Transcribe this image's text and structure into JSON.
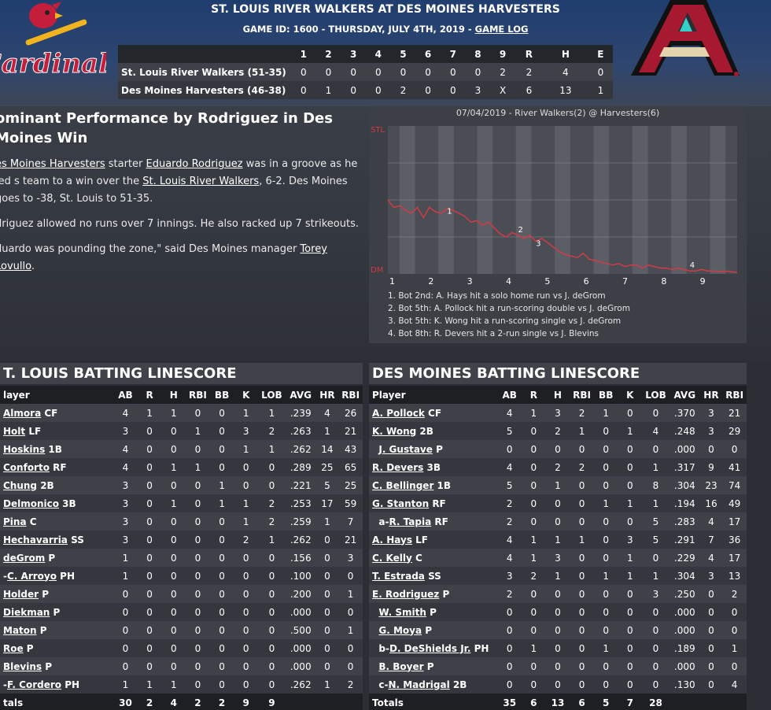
{
  "header": {
    "title": "ST. LOUIS RIVER WALKERS AT DES MOINES HARVESTERS",
    "subtitle": "GAME ID: 1600 - THURSDAY, JULY 4TH, 2019 - ",
    "game_log_link": "GAME LOG",
    "away_logo": "cardinals-logo",
    "home_logo": "arizona-a-logo"
  },
  "linescore": {
    "headers": [
      "",
      "1",
      "2",
      "3",
      "4",
      "5",
      "6",
      "7",
      "8",
      "9",
      "R",
      "H",
      "E"
    ],
    "rows": [
      [
        "St. Louis River Walkers (51-35)",
        "0",
        "0",
        "0",
        "0",
        "0",
        "0",
        "0",
        "0",
        "2",
        "2",
        "4",
        "0"
      ],
      [
        "Des Moines Harvesters (46-38)",
        "0",
        "1",
        "0",
        "0",
        "2",
        "0",
        "0",
        "3",
        "X",
        "6",
        "13",
        "1"
      ]
    ]
  },
  "story": {
    "headline": "ominant Performance by Rodriguez in Des Moines Win",
    "p1_a": "es Moines Harvesters",
    "p1_b": " starter ",
    "p1_c": "Eduardo Rodriguez",
    "p1_d": " was in a groove as he led s team to a win over the ",
    "p1_e": "St. Louis River Walkers",
    "p1_f": ", 6-2. Des Moines goes to -38, St. Louis to 51-35.",
    "p2": "driguez allowed no runs over 7 innings. He also racked up 7 strikeouts.",
    "p3_a": "duardo was pounding the zone,\" said Des Moines manager ",
    "p3_b": "Torey Lovullo",
    "p3_c": "."
  },
  "win_prob": {
    "title": "07/04/2019 - River Walkers(2) @ Harvesters(6)",
    "top_label": "STL",
    "bottom_label": "DM",
    "innings": [
      "1",
      "2",
      "3",
      "4",
      "5",
      "6",
      "7",
      "8",
      "9"
    ],
    "line_color": "#d23a48",
    "points": [
      0.5,
      0.45,
      0.46,
      0.43,
      0.41,
      0.45,
      0.38,
      0.45,
      0.42,
      0.41,
      0.44,
      0.43,
      0.41,
      0.39,
      0.35,
      0.36,
      0.33,
      0.35,
      0.31,
      0.27,
      0.25,
      0.28,
      0.26,
      0.24,
      0.26,
      0.22,
      0.24,
      0.21,
      0.18,
      0.15,
      0.13,
      0.12,
      0.11,
      0.14,
      0.1,
      0.09,
      0.08,
      0.07,
      0.06,
      0.07,
      0.05,
      0.06,
      0.06,
      0.04,
      0.06,
      0.05,
      0.04,
      0.04,
      0.03,
      0.04,
      0.03,
      0.02,
      0.02,
      0.03,
      0.02,
      0.02,
      0.015,
      0.02,
      0.015,
      0.01
    ],
    "event_markers": [
      "1",
      "2",
      "3",
      "4"
    ],
    "notes": [
      "1. Bot 2nd: A. Hays hit a solo home run vs J. deGrom",
      "2. Bot 5th: A. Pollock hit a run-scoring double vs J. deGrom",
      "3. Bot 5th: K. Wong hit a run-scoring single vs J. deGrom",
      "4. Bot 8th: R. Devers hit a 2-run single vs J. Blevins"
    ]
  },
  "stl_batting": {
    "title": "T. LOUIS BATTING LINESCORE",
    "headers": [
      "layer",
      "AB",
      "R",
      "H",
      "RBI",
      "BB",
      "K",
      "LOB",
      "AVG",
      "HR",
      "RBI"
    ],
    "rows": [
      {
        "pre": "",
        "name": "Almora",
        "pos": " CF",
        "s": [
          "4",
          "1",
          "1",
          "0",
          "0",
          "1",
          "1",
          ".239",
          "4",
          "26"
        ]
      },
      {
        "pre": "",
        "name": "Holt",
        "pos": " LF",
        "s": [
          "3",
          "0",
          "0",
          "1",
          "0",
          "3",
          "2",
          ".263",
          "1",
          "21"
        ]
      },
      {
        "pre": "",
        "name": "Hoskins",
        "pos": " 1B",
        "s": [
          "4",
          "0",
          "0",
          "0",
          "0",
          "1",
          "1",
          ".262",
          "14",
          "43"
        ]
      },
      {
        "pre": "",
        "name": "Conforto",
        "pos": " RF",
        "s": [
          "4",
          "0",
          "1",
          "1",
          "0",
          "0",
          "0",
          ".289",
          "25",
          "65"
        ]
      },
      {
        "pre": "",
        "name": "Chung",
        "pos": " 2B",
        "s": [
          "3",
          "0",
          "0",
          "0",
          "1",
          "0",
          "0",
          ".221",
          "5",
          "25"
        ]
      },
      {
        "pre": "",
        "name": "Delmonico",
        "pos": " 3B",
        "s": [
          "3",
          "0",
          "1",
          "0",
          "1",
          "1",
          "2",
          ".253",
          "17",
          "59"
        ]
      },
      {
        "pre": "",
        "name": "Pina",
        "pos": " C",
        "s": [
          "3",
          "0",
          "0",
          "0",
          "0",
          "1",
          "2",
          ".259",
          "1",
          "7"
        ]
      },
      {
        "pre": "",
        "name": "Hechavarria",
        "pos": " SS",
        "s": [
          "3",
          "0",
          "0",
          "0",
          "0",
          "2",
          "1",
          ".262",
          "0",
          "21"
        ]
      },
      {
        "pre": "",
        "name": "deGrom",
        "pos": " P",
        "s": [
          "1",
          "0",
          "0",
          "0",
          "0",
          "0",
          "0",
          ".156",
          "0",
          "3"
        ]
      },
      {
        "pre": "-",
        "name": "C. Arroyo",
        "pos": " PH",
        "s": [
          "1",
          "0",
          "0",
          "0",
          "0",
          "0",
          "0",
          ".100",
          "0",
          "0"
        ]
      },
      {
        "pre": "",
        "name": "Holder",
        "pos": " P",
        "s": [
          "0",
          "0",
          "0",
          "0",
          "0",
          "0",
          "0",
          ".200",
          "0",
          "1"
        ]
      },
      {
        "pre": "",
        "name": "Diekman",
        "pos": " P",
        "s": [
          "0",
          "0",
          "0",
          "0",
          "0",
          "0",
          "0",
          ".000",
          "0",
          "0"
        ]
      },
      {
        "pre": "",
        "name": "Maton",
        "pos": " P",
        "s": [
          "0",
          "0",
          "0",
          "0",
          "0",
          "0",
          "0",
          ".500",
          "0",
          "1"
        ]
      },
      {
        "pre": "",
        "name": "Roe",
        "pos": " P",
        "s": [
          "0",
          "0",
          "0",
          "0",
          "0",
          "0",
          "0",
          ".000",
          "0",
          "0"
        ]
      },
      {
        "pre": "",
        "name": "Blevins",
        "pos": " P",
        "s": [
          "0",
          "0",
          "0",
          "0",
          "0",
          "0",
          "0",
          ".000",
          "0",
          "0"
        ]
      },
      {
        "pre": "-",
        "name": "F. Cordero",
        "pos": " PH",
        "s": [
          "1",
          "1",
          "1",
          "0",
          "0",
          "0",
          "0",
          ".262",
          "1",
          "2"
        ]
      }
    ],
    "totals_label": "tals",
    "totals": [
      "30",
      "2",
      "4",
      "2",
      "2",
      "9",
      "9",
      "",
      "",
      ""
    ]
  },
  "dm_batting": {
    "title": "DES MOINES BATTING LINESCORE",
    "headers": [
      "Player",
      "AB",
      "R",
      "H",
      "RBI",
      "BB",
      "K",
      "LOB",
      "AVG",
      "HR",
      "RBI"
    ],
    "rows": [
      {
        "pre": "",
        "name": "A. Pollock",
        "pos": " CF",
        "s": [
          "4",
          "1",
          "3",
          "2",
          "1",
          "0",
          "0",
          ".370",
          "3",
          "21"
        ]
      },
      {
        "pre": "",
        "name": "K. Wong",
        "pos": " 2B",
        "s": [
          "5",
          "0",
          "2",
          "1",
          "0",
          "1",
          "4",
          ".248",
          "3",
          "29"
        ]
      },
      {
        "pre": "  ",
        "name": "J. Gustave",
        "pos": " P",
        "s": [
          "0",
          "0",
          "0",
          "0",
          "0",
          "0",
          "0",
          ".000",
          "0",
          "0"
        ]
      },
      {
        "pre": "",
        "name": "R. Devers",
        "pos": " 3B",
        "s": [
          "4",
          "0",
          "2",
          "2",
          "0",
          "0",
          "1",
          ".317",
          "9",
          "41"
        ]
      },
      {
        "pre": "",
        "name": "C. Bellinger",
        "pos": " 1B",
        "s": [
          "5",
          "0",
          "1",
          "0",
          "0",
          "0",
          "8",
          ".304",
          "23",
          "74"
        ]
      },
      {
        "pre": "",
        "name": "G. Stanton",
        "pos": " RF",
        "s": [
          "2",
          "0",
          "0",
          "0",
          "1",
          "1",
          "1",
          ".194",
          "16",
          "49"
        ]
      },
      {
        "pre": "  a-",
        "name": "R. Tapia",
        "pos": " RF",
        "s": [
          "2",
          "0",
          "0",
          "0",
          "0",
          "0",
          "5",
          ".283",
          "4",
          "17"
        ]
      },
      {
        "pre": "",
        "name": "A. Hays",
        "pos": " LF",
        "s": [
          "4",
          "1",
          "1",
          "1",
          "0",
          "3",
          "5",
          ".291",
          "7",
          "36"
        ]
      },
      {
        "pre": "",
        "name": "C. Kelly",
        "pos": " C",
        "s": [
          "4",
          "1",
          "3",
          "0",
          "0",
          "1",
          "0",
          ".229",
          "4",
          "17"
        ]
      },
      {
        "pre": "",
        "name": "T. Estrada",
        "pos": " SS",
        "s": [
          "3",
          "2",
          "1",
          "0",
          "1",
          "1",
          "1",
          ".304",
          "3",
          "13"
        ]
      },
      {
        "pre": "",
        "name": "E. Rodriguez",
        "pos": " P",
        "s": [
          "2",
          "0",
          "0",
          "0",
          "0",
          "0",
          "3",
          ".250",
          "0",
          "2"
        ]
      },
      {
        "pre": "  ",
        "name": "W. Smith",
        "pos": " P",
        "s": [
          "0",
          "0",
          "0",
          "0",
          "0",
          "0",
          "0",
          ".000",
          "0",
          "0"
        ]
      },
      {
        "pre": "  ",
        "name": "G. Moya",
        "pos": " P",
        "s": [
          "0",
          "0",
          "0",
          "0",
          "0",
          "0",
          "0",
          ".000",
          "0",
          "0"
        ]
      },
      {
        "pre": "  b-",
        "name": "D. DeShields Jr.",
        "pos": " PH",
        "s": [
          "0",
          "1",
          "0",
          "0",
          "1",
          "0",
          "0",
          ".189",
          "0",
          "1"
        ]
      },
      {
        "pre": "  ",
        "name": "B. Boyer",
        "pos": " P",
        "s": [
          "0",
          "0",
          "0",
          "0",
          "0",
          "0",
          "0",
          ".000",
          "0",
          "0"
        ]
      },
      {
        "pre": "  c-",
        "name": "N. Madrigal",
        "pos": " 2B",
        "s": [
          "0",
          "0",
          "0",
          "0",
          "0",
          "0",
          "0",
          ".130",
          "0",
          "4"
        ]
      }
    ],
    "totals_label": "Totals",
    "totals": [
      "35",
      "6",
      "13",
      "6",
      "5",
      "7",
      "28",
      "",
      "",
      ""
    ]
  }
}
